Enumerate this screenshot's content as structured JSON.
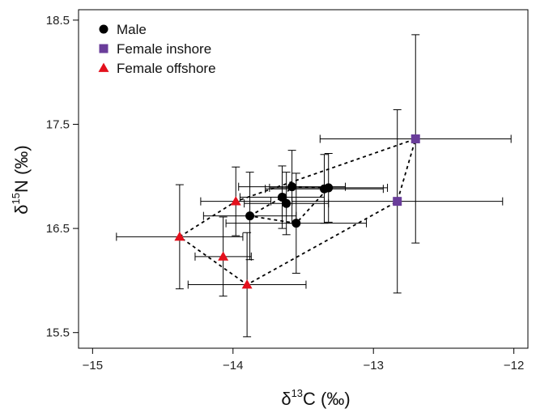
{
  "chart_data": {
    "type": "scatter",
    "xlabel": {
      "delta": "δ",
      "superscript": "13",
      "element": "C (‰)"
    },
    "ylabel": {
      "delta": "δ",
      "superscript": "15",
      "element": "N (‰)"
    },
    "xlim": [
      -15.1,
      -11.9
    ],
    "ylim": [
      15.35,
      18.6
    ],
    "xticks": [
      -15,
      -14,
      -13,
      -12
    ],
    "xtick_labels": [
      "−15",
      "−14",
      "−13",
      "−12"
    ],
    "yticks": [
      15.5,
      16.5,
      17.5,
      18.5
    ],
    "ytick_labels": [
      "15.5",
      "16.5",
      "17.5",
      "18.5"
    ],
    "grid": false,
    "legend_position": "top-left",
    "series": [
      {
        "name": "Male",
        "marker": "circle",
        "color": "#000000",
        "points": [
          {
            "x": -13.88,
            "y": 16.62,
            "xerr": 0.33,
            "yerr": 0.42
          },
          {
            "x": -13.65,
            "y": 16.8,
            "xerr": 0.3,
            "yerr": 0.3
          },
          {
            "x": -13.62,
            "y": 16.74,
            "xerr": 0.3,
            "yerr": 0.3
          },
          {
            "x": -13.58,
            "y": 16.9,
            "xerr": 0.38,
            "yerr": 0.35
          },
          {
            "x": -13.55,
            "y": 16.55,
            "xerr": 0.5,
            "yerr": 0.48
          },
          {
            "x": -13.35,
            "y": 16.88,
            "xerr": 0.42,
            "yerr": 0.33
          },
          {
            "x": -13.32,
            "y": 16.89,
            "xerr": 0.42,
            "yerr": 0.33
          }
        ]
      },
      {
        "name": "Female inshore",
        "marker": "square",
        "color": "#6a3d9a",
        "points": [
          {
            "x": -12.83,
            "y": 16.76,
            "xerr": 0.75,
            "yerr": 0.88
          },
          {
            "x": -12.7,
            "y": 17.36,
            "xerr": 0.68,
            "yerr": 1.0
          }
        ]
      },
      {
        "name": "Female offshore",
        "marker": "triangle",
        "color": "#e3101c",
        "points": [
          {
            "x": -14.38,
            "y": 16.42,
            "xerr": 0.45,
            "yerr": 0.5
          },
          {
            "x": -14.07,
            "y": 16.23,
            "xerr": 0.2,
            "yerr": 0.38
          },
          {
            "x": -13.98,
            "y": 16.76,
            "xerr": 0.25,
            "yerr": 0.33
          },
          {
            "x": -13.9,
            "y": 15.96,
            "xerr": 0.42,
            "yerr": 0.5
          }
        ]
      }
    ],
    "hulls": [
      [
        [
          -13.88,
          16.62
        ],
        [
          -13.65,
          16.8
        ],
        [
          -13.58,
          16.9
        ],
        [
          -13.32,
          16.89
        ],
        [
          -13.55,
          16.55
        ]
      ],
      [
        [
          -14.38,
          16.42
        ],
        [
          -13.98,
          16.76
        ],
        [
          -12.7,
          17.36
        ],
        [
          -12.83,
          16.76
        ],
        [
          -13.9,
          15.96
        ]
      ]
    ]
  }
}
